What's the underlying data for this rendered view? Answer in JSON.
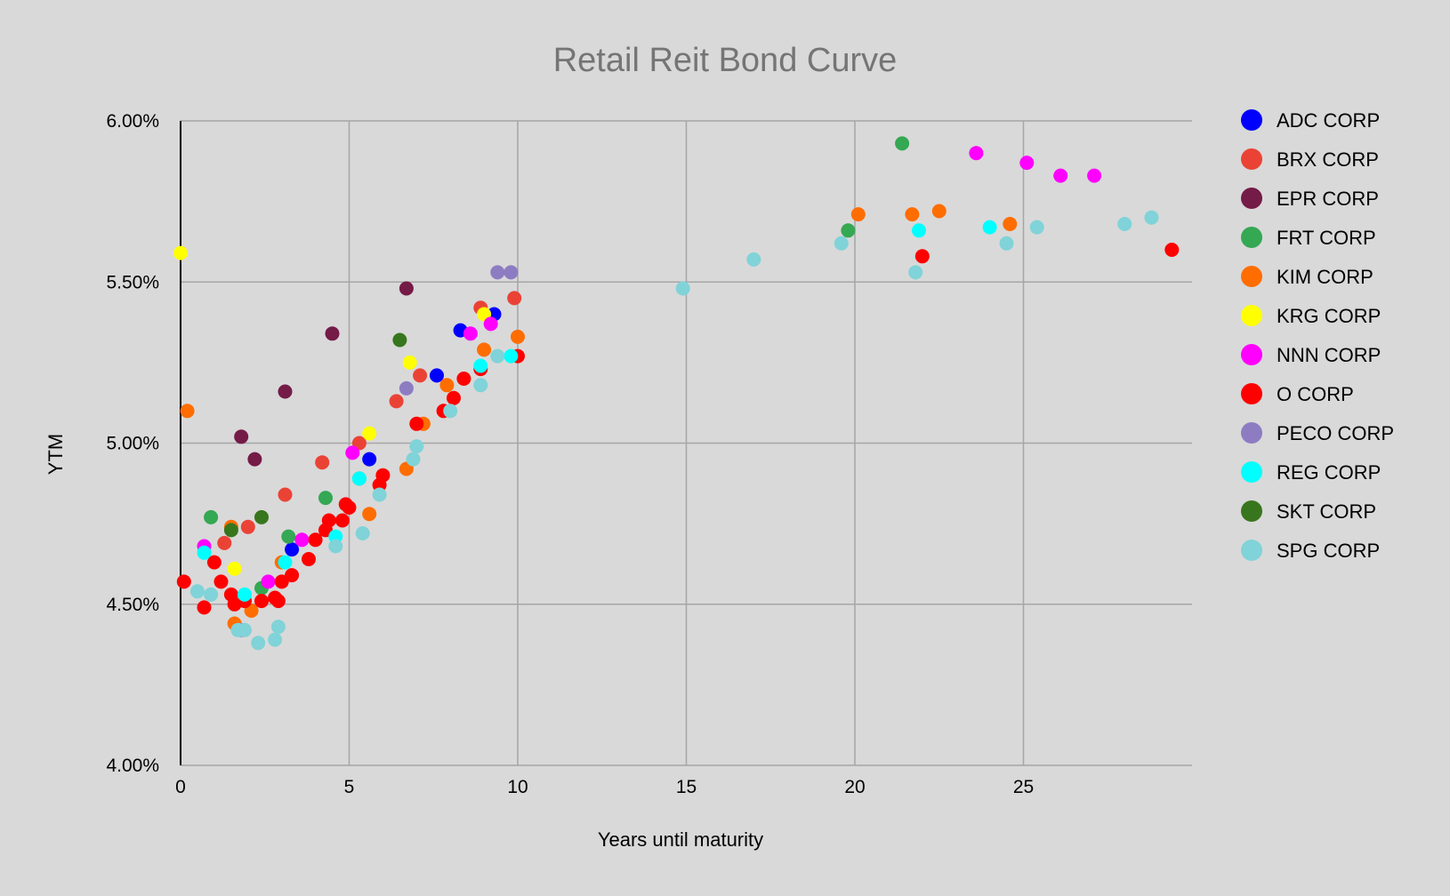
{
  "chart_data": {
    "type": "scatter",
    "title": "Retail Reit Bond Curve",
    "xlabel": "Years until maturity",
    "ylabel": "YTM",
    "xlim": [
      0,
      30
    ],
    "ylim": [
      4.0,
      6.0
    ],
    "x_ticks": [
      0,
      5,
      10,
      15,
      20,
      25
    ],
    "x_tick_labels": [
      "0",
      "5",
      "10",
      "15",
      "20",
      "25"
    ],
    "y_ticks": [
      4.0,
      4.5,
      5.0,
      5.5,
      6.0
    ],
    "y_tick_labels": [
      "4.00%",
      "4.50%",
      "5.00%",
      "5.50%",
      "6.00%"
    ],
    "grid": true,
    "legend_position": "right",
    "series": [
      {
        "name": "ADC CORP",
        "color": "#0000ff",
        "points": [
          [
            3.3,
            4.67
          ],
          [
            5.6,
            4.95
          ],
          [
            7.6,
            5.21
          ],
          [
            8.3,
            5.35
          ],
          [
            9.3,
            5.4
          ]
        ]
      },
      {
        "name": "BRX CORP",
        "color": "#ea4335",
        "points": [
          [
            1.3,
            4.69
          ],
          [
            2.0,
            4.74
          ],
          [
            3.1,
            4.84
          ],
          [
            4.2,
            4.94
          ],
          [
            5.3,
            5.0
          ],
          [
            6.4,
            5.13
          ],
          [
            7.1,
            5.21
          ],
          [
            8.9,
            5.42
          ],
          [
            9.9,
            5.45
          ]
        ]
      },
      {
        "name": "EPR CORP",
        "color": "#741b47",
        "points": [
          [
            1.8,
            5.02
          ],
          [
            2.2,
            4.95
          ],
          [
            3.1,
            5.16
          ],
          [
            4.5,
            5.34
          ],
          [
            6.7,
            5.48
          ]
        ]
      },
      {
        "name": "FRT CORP",
        "color": "#34a853",
        "points": [
          [
            0.9,
            4.77
          ],
          [
            2.4,
            4.55
          ],
          [
            3.2,
            4.71
          ],
          [
            4.3,
            4.83
          ],
          [
            5.3,
            4.89
          ],
          [
            19.8,
            5.66
          ],
          [
            21.4,
            5.93
          ]
        ]
      },
      {
        "name": "KIM CORP",
        "color": "#ff6d01",
        "points": [
          [
            0.2,
            5.1
          ],
          [
            1.5,
            4.74
          ],
          [
            1.6,
            4.44
          ],
          [
            2.1,
            4.48
          ],
          [
            3.0,
            4.63
          ],
          [
            5.6,
            4.78
          ],
          [
            6.7,
            4.92
          ],
          [
            7.2,
            5.06
          ],
          [
            7.9,
            5.18
          ],
          [
            9.0,
            5.29
          ],
          [
            10.0,
            5.33
          ],
          [
            20.1,
            5.71
          ],
          [
            21.7,
            5.71
          ],
          [
            22.5,
            5.72
          ],
          [
            24.6,
            5.68
          ]
        ]
      },
      {
        "name": "KRG CORP",
        "color": "#ffff00",
        "points": [
          [
            0.0,
            5.59
          ],
          [
            1.6,
            4.61
          ],
          [
            5.6,
            5.03
          ],
          [
            6.8,
            5.25
          ],
          [
            9.0,
            5.4
          ]
        ]
      },
      {
        "name": "NNN CORP",
        "color": "#ff00ff",
        "points": [
          [
            0.7,
            4.68
          ],
          [
            2.6,
            4.57
          ],
          [
            3.6,
            4.7
          ],
          [
            5.1,
            4.97
          ],
          [
            8.6,
            5.34
          ],
          [
            9.2,
            5.37
          ],
          [
            23.6,
            5.9
          ],
          [
            25.1,
            5.87
          ],
          [
            26.1,
            5.83
          ],
          [
            27.1,
            5.83
          ]
        ]
      },
      {
        "name": "O CORP",
        "color": "#ff0000",
        "points": [
          [
            0.1,
            4.57
          ],
          [
            0.7,
            4.49
          ],
          [
            1.0,
            4.63
          ],
          [
            1.2,
            4.57
          ],
          [
            1.5,
            4.53
          ],
          [
            1.6,
            4.5
          ],
          [
            1.9,
            4.51
          ],
          [
            2.4,
            4.51
          ],
          [
            2.8,
            4.52
          ],
          [
            2.9,
            4.51
          ],
          [
            3.0,
            4.57
          ],
          [
            3.3,
            4.59
          ],
          [
            3.8,
            4.64
          ],
          [
            4.0,
            4.7
          ],
          [
            4.3,
            4.73
          ],
          [
            4.4,
            4.76
          ],
          [
            4.8,
            4.76
          ],
          [
            4.9,
            4.81
          ],
          [
            5.0,
            4.8
          ],
          [
            5.9,
            4.87
          ],
          [
            6.0,
            4.9
          ],
          [
            7.0,
            5.06
          ],
          [
            7.8,
            5.1
          ],
          [
            8.1,
            5.14
          ],
          [
            8.4,
            5.2
          ],
          [
            8.9,
            5.23
          ],
          [
            10.0,
            5.27
          ],
          [
            22.0,
            5.58
          ],
          [
            29.4,
            5.6
          ]
        ]
      },
      {
        "name": "PECO CORP",
        "color": "#8e7cc3",
        "points": [
          [
            1.8,
            4.42
          ],
          [
            6.7,
            5.17
          ],
          [
            9.4,
            5.53
          ],
          [
            9.8,
            5.53
          ]
        ]
      },
      {
        "name": "REG CORP",
        "color": "#00ffff",
        "points": [
          [
            0.7,
            4.66
          ],
          [
            1.9,
            4.53
          ],
          [
            3.1,
            4.63
          ],
          [
            4.6,
            4.71
          ],
          [
            5.3,
            4.89
          ],
          [
            8.9,
            5.24
          ],
          [
            9.8,
            5.27
          ],
          [
            21.9,
            5.66
          ],
          [
            24.0,
            5.67
          ]
        ]
      },
      {
        "name": "SKT CORP",
        "color": "#38761d",
        "points": [
          [
            1.5,
            4.73
          ],
          [
            2.4,
            4.77
          ],
          [
            6.5,
            5.32
          ]
        ]
      },
      {
        "name": "SPG CORP",
        "color": "#80d3d8",
        "points": [
          [
            0.5,
            4.54
          ],
          [
            0.9,
            4.53
          ],
          [
            1.7,
            4.42
          ],
          [
            1.9,
            4.42
          ],
          [
            2.3,
            4.38
          ],
          [
            2.8,
            4.39
          ],
          [
            2.9,
            4.43
          ],
          [
            4.6,
            4.68
          ],
          [
            5.4,
            4.72
          ],
          [
            5.9,
            4.84
          ],
          [
            6.9,
            4.95
          ],
          [
            7.0,
            4.99
          ],
          [
            8.0,
            5.1
          ],
          [
            8.9,
            5.18
          ],
          [
            9.4,
            5.27
          ],
          [
            14.9,
            5.48
          ],
          [
            17.0,
            5.57
          ],
          [
            19.6,
            5.62
          ],
          [
            21.8,
            5.53
          ],
          [
            24.5,
            5.62
          ],
          [
            25.4,
            5.67
          ],
          [
            28.0,
            5.68
          ],
          [
            28.8,
            5.7
          ]
        ]
      }
    ]
  }
}
